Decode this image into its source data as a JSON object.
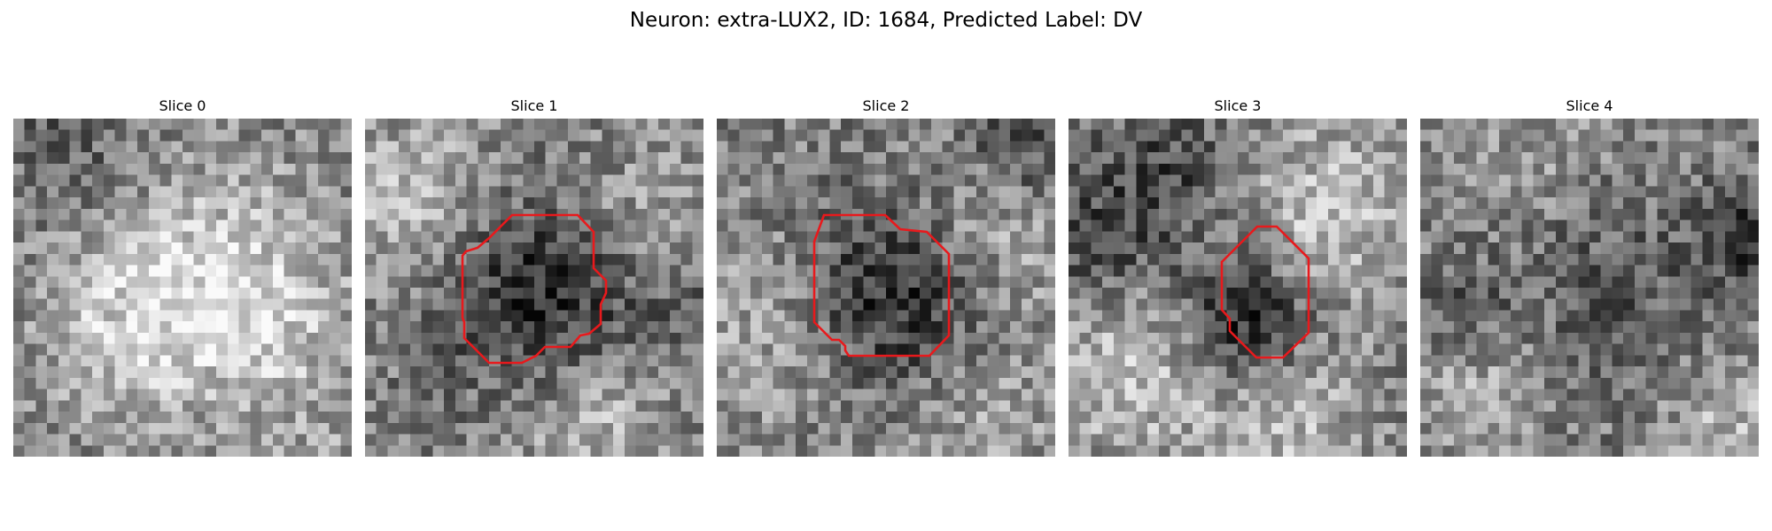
{
  "figure": {
    "title": "Neuron: extra-LUX2, ID: 1684, Predicted Label: DV",
    "contour_color": "#e8191c"
  },
  "slices": [
    {
      "label": "Slice 0",
      "has_roi": false
    },
    {
      "label": "Slice 1",
      "has_roi": true
    },
    {
      "label": "Slice 2",
      "has_roi": true
    },
    {
      "label": "Slice 3",
      "has_roi": true
    },
    {
      "label": "Slice 4",
      "has_roi": false
    }
  ]
}
